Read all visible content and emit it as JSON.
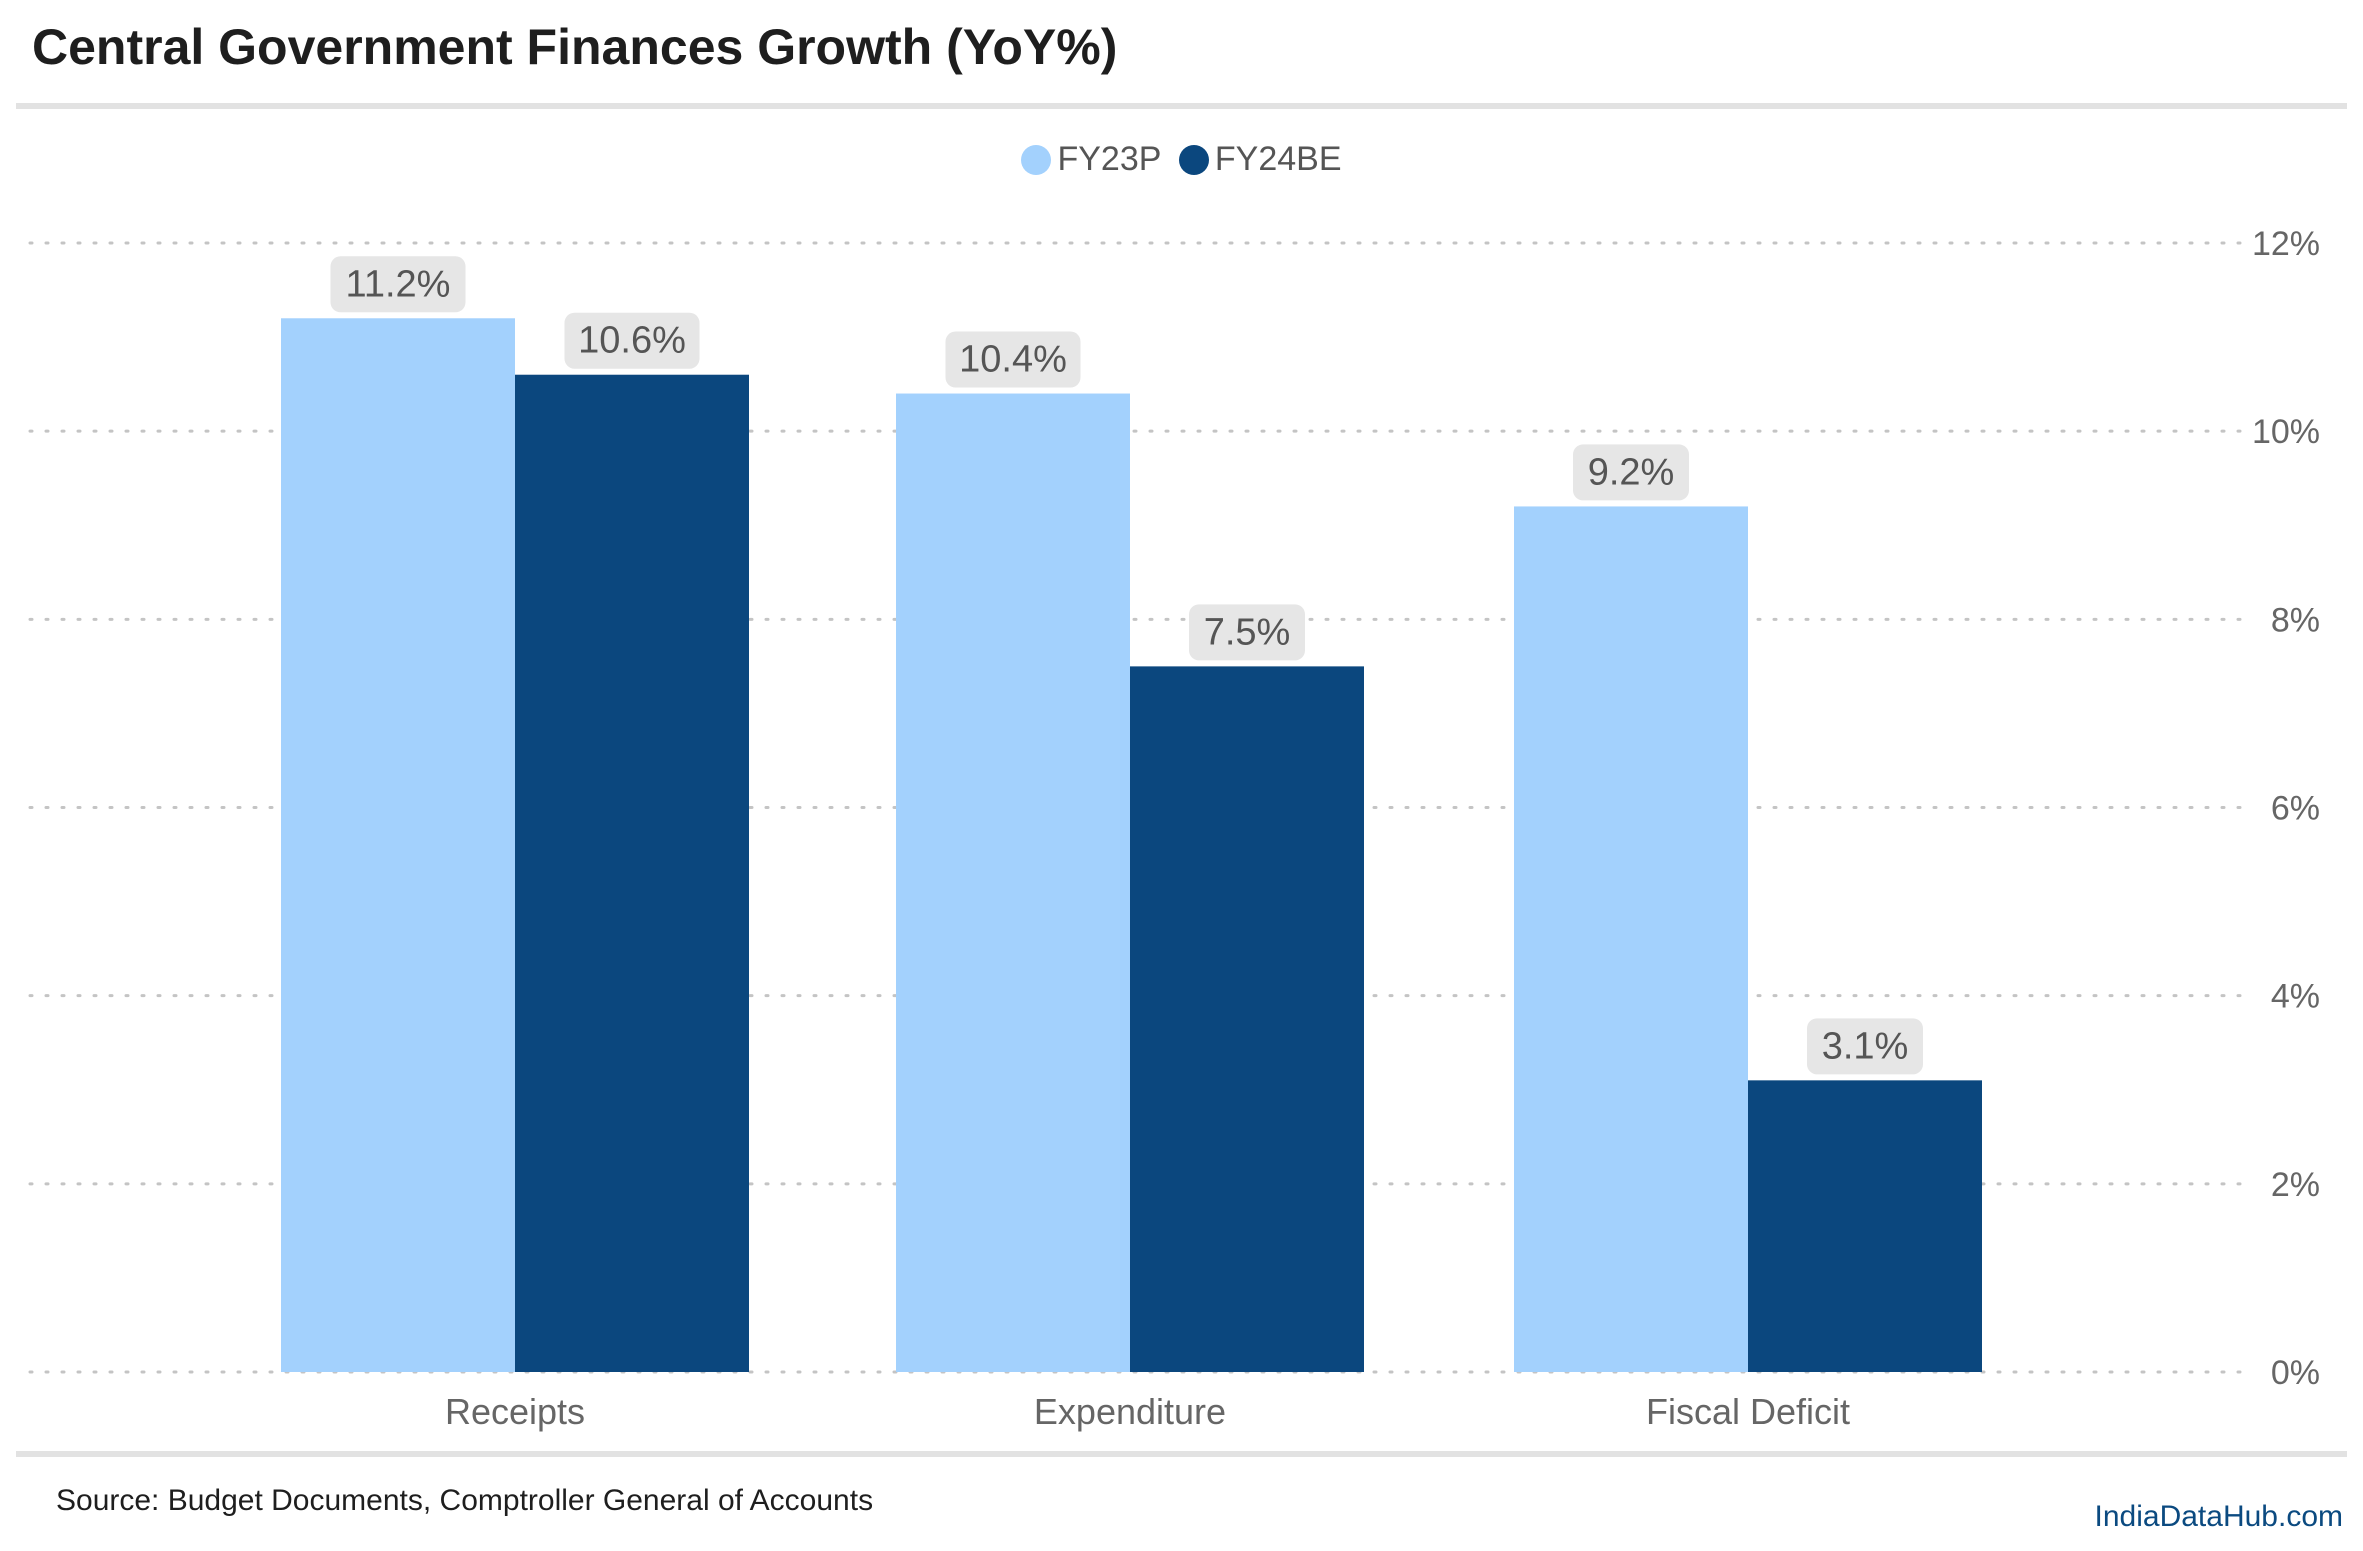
{
  "title": "Central Government Finances Growth (YoY%)",
  "legend": [
    {
      "name": "FY23P",
      "color": "#a3d1fd"
    },
    {
      "name": "FY24BE",
      "color": "#0b477e"
    }
  ],
  "source": "Source: Budget Documents, Comptroller General of Accounts",
  "brand": "IndiaDataHub.com",
  "chart_data": {
    "type": "bar",
    "title": "Central Government Finances Growth (YoY%)",
    "categories": [
      "Receipts",
      "Expenditure",
      "Fiscal Deficit"
    ],
    "series": [
      {
        "name": "FY23P",
        "values": [
          11.2,
          10.4,
          9.2
        ],
        "color": "#a3d1fd"
      },
      {
        "name": "FY24BE",
        "values": [
          10.6,
          7.5,
          3.1
        ],
        "color": "#0b477e"
      }
    ],
    "data_labels": [
      [
        "11.2%",
        "10.4%",
        "9.2%"
      ],
      [
        "10.6%",
        "7.5%",
        "3.1%"
      ]
    ],
    "ylim": [
      0,
      12
    ],
    "yticks": [
      0,
      2,
      4,
      6,
      8,
      10,
      12
    ],
    "ytick_labels": [
      "0%",
      "2%",
      "4%",
      "6%",
      "8%",
      "10%",
      "12%"
    ],
    "y_axis_side": "right",
    "grid": true,
    "legend_position": "top-center",
    "xlabel": "",
    "ylabel": ""
  }
}
